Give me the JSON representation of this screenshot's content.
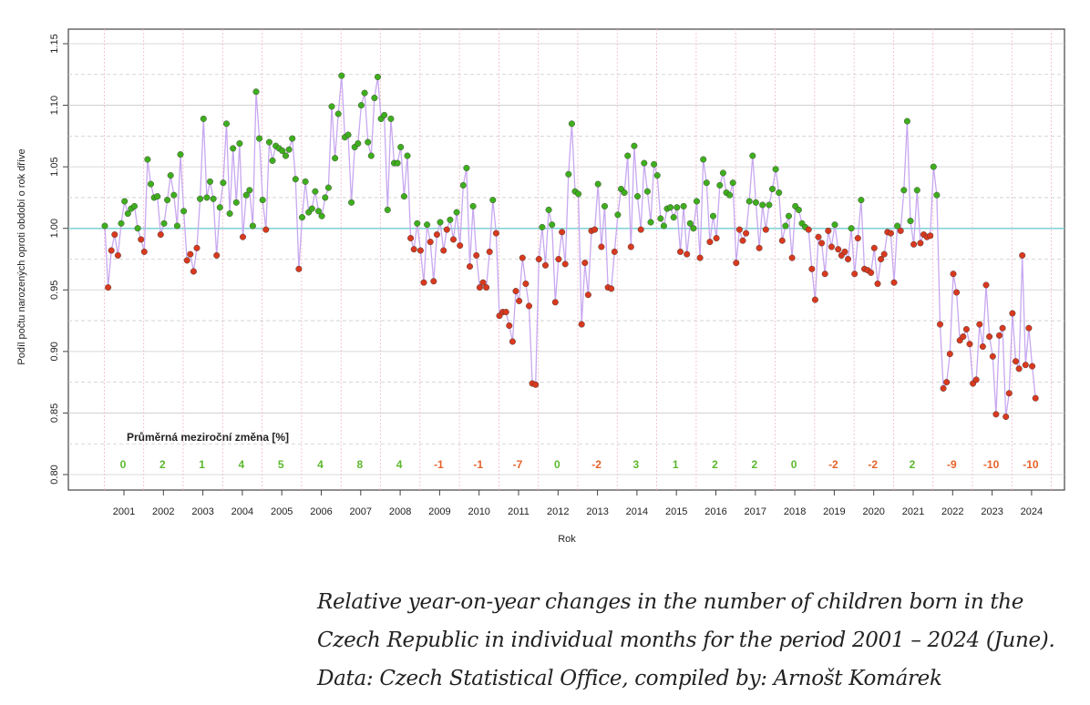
{
  "chart_data": {
    "type": "scatter",
    "xlabel": "Rok",
    "ylabel": "Podíl počtu narozených oproti období o rok dříve",
    "ylim": [
      0.8,
      1.15
    ],
    "y_ticks": [
      "0.80",
      "0.85",
      "0.90",
      "0.95",
      "1.00",
      "1.05",
      "1.10",
      "1.15"
    ],
    "x_ticks": [
      "2001",
      "2002",
      "2003",
      "2004",
      "2005",
      "2006",
      "2007",
      "2008",
      "2009",
      "2010",
      "2011",
      "2012",
      "2013",
      "2014",
      "2015",
      "2016",
      "2017",
      "2018",
      "2019",
      "2020",
      "2021",
      "2022",
      "2023",
      "2024"
    ],
    "reference_line": 1.0,
    "colors": {
      "positive": "#3fae1e",
      "negative": "#d8391f",
      "line": "#c8a8f0",
      "reference": "#7fd0d4",
      "grid_v": "#f2b8c6",
      "grid_h": "#cccccc"
    },
    "annotation_title": "Průměrná meziroční změna [%]",
    "annual_changes": [
      "0",
      "2",
      "1",
      "4",
      "5",
      "4",
      "8",
      "4",
      "-1",
      "-1",
      "-7",
      "0",
      "-2",
      "3",
      "1",
      "2",
      "2",
      "0",
      "-2",
      "-2",
      "2",
      "-9",
      "-10",
      "-10"
    ],
    "monthly_values": [
      [
        1.002,
        0.952,
        0.982,
        0.995,
        0.978,
        1.004,
        1.022,
        1.012,
        1.016,
        1.018,
        1.0,
        0.991
      ],
      [
        0.981,
        1.056,
        1.036,
        1.025,
        1.026,
        0.995,
        1.004,
        1.023,
        1.043,
        1.027,
        1.002,
        1.06
      ],
      [
        1.014,
        0.974,
        0.979,
        0.965,
        0.984,
        1.024,
        1.089,
        1.025,
        1.038,
        1.024,
        0.978,
        1.017
      ],
      [
        1.037,
        1.085,
        1.012,
        1.065,
        1.021,
        1.069,
        0.993,
        1.027,
        1.031,
        1.002,
        1.111,
        1.073
      ],
      [
        1.023,
        0.999,
        1.07,
        1.055,
        1.067,
        1.065,
        1.063,
        1.059,
        1.064,
        1.073,
        1.04,
        0.967
      ],
      [
        1.009,
        1.038,
        1.013,
        1.016,
        1.03,
        1.014,
        1.01,
        1.025,
        1.033,
        1.099,
        1.057,
        1.093
      ],
      [
        1.124,
        1.074,
        1.076,
        1.021,
        1.066,
        1.069,
        1.1,
        1.11,
        1.07,
        1.059,
        1.106,
        1.123
      ],
      [
        1.089,
        1.092,
        1.015,
        1.089,
        1.053,
        1.053,
        1.066,
        1.026,
        1.059,
        0.992,
        0.983,
        1.004
      ],
      [
        0.982,
        0.956,
        1.003,
        0.989,
        0.957,
        0.995,
        1.005,
        0.982,
        0.999,
        1.007,
        0.991,
        1.013
      ],
      [
        0.986,
        1.035,
        1.049,
        0.969,
        1.018,
        0.978,
        0.952,
        0.956,
        0.952,
        0.981,
        1.023,
        0.996
      ],
      [
        0.929,
        0.932,
        0.932,
        0.921,
        0.908,
        0.949,
        0.941,
        0.976,
        0.955,
        0.937,
        0.874,
        0.873
      ],
      [
        0.975,
        1.001,
        0.97,
        1.015,
        1.003,
        0.94,
        0.975,
        0.997,
        0.971,
        1.044,
        1.085,
        1.03
      ],
      [
        1.028,
        0.922,
        0.972,
        0.946,
        0.998,
        0.999,
        1.036,
        0.985,
        1.018,
        0.952,
        0.951,
        0.981
      ],
      [
        1.011,
        1.032,
        1.029,
        1.059,
        0.985,
        1.067,
        1.026,
        0.999,
        1.053,
        1.03,
        1.005,
        1.052
      ],
      [
        1.043,
        1.008,
        1.002,
        1.016,
        1.017,
        1.009,
        1.017,
        0.981,
        1.018,
        0.979,
        1.004,
        1.0
      ],
      [
        1.022,
        0.976,
        1.056,
        1.037,
        0.989,
        1.01,
        0.992,
        1.035,
        1.045,
        1.029,
        1.027,
        1.037
      ],
      [
        0.972,
        0.999,
        0.99,
        0.996,
        1.022,
        1.059,
        1.021,
        0.984,
        1.019,
        0.999,
        1.019,
        1.032
      ],
      [
        1.048,
        1.029,
        0.99,
        1.002,
        1.01,
        0.976,
        1.018,
        1.015,
        1.004,
        1.001,
        0.999,
        0.967
      ]
    ],
    "monthly_values_2019_2024": [
      [
        0.942,
        0.993,
        0.988,
        0.963,
        0.998,
        0.985,
        1.003,
        0.983,
        0.978,
        0.981,
        0.975,
        1.0
      ],
      [
        0.963,
        0.992,
        1.023,
        0.967,
        0.966,
        0.964,
        0.984,
        0.955,
        0.975,
        0.979,
        0.997,
        0.996
      ],
      [
        0.956,
        1.002,
        0.998,
        1.031,
        1.087,
        1.006,
        0.987,
        1.031,
        0.988,
        0.995,
        0.993,
        0.994
      ],
      [
        1.05,
        1.027,
        0.922,
        0.87,
        0.875,
        0.898,
        0.963,
        0.948,
        0.909,
        0.912,
        0.918,
        0.906
      ],
      [
        0.874,
        0.877,
        0.922,
        0.904,
        0.954,
        0.912,
        0.896,
        0.849,
        0.913,
        0.919,
        0.847,
        0.866
      ],
      [
        0.931,
        0.892,
        0.886,
        0.978,
        0.889,
        0.919,
        0.888,
        0.862
      ]
    ]
  },
  "caption": "Relative year-on-year changes in the number of children born in the Czech Republic in individual months for the period 2001 – 2024 (June). Data: Czech Statistical Office, compiled by: Arnošt Komárek"
}
